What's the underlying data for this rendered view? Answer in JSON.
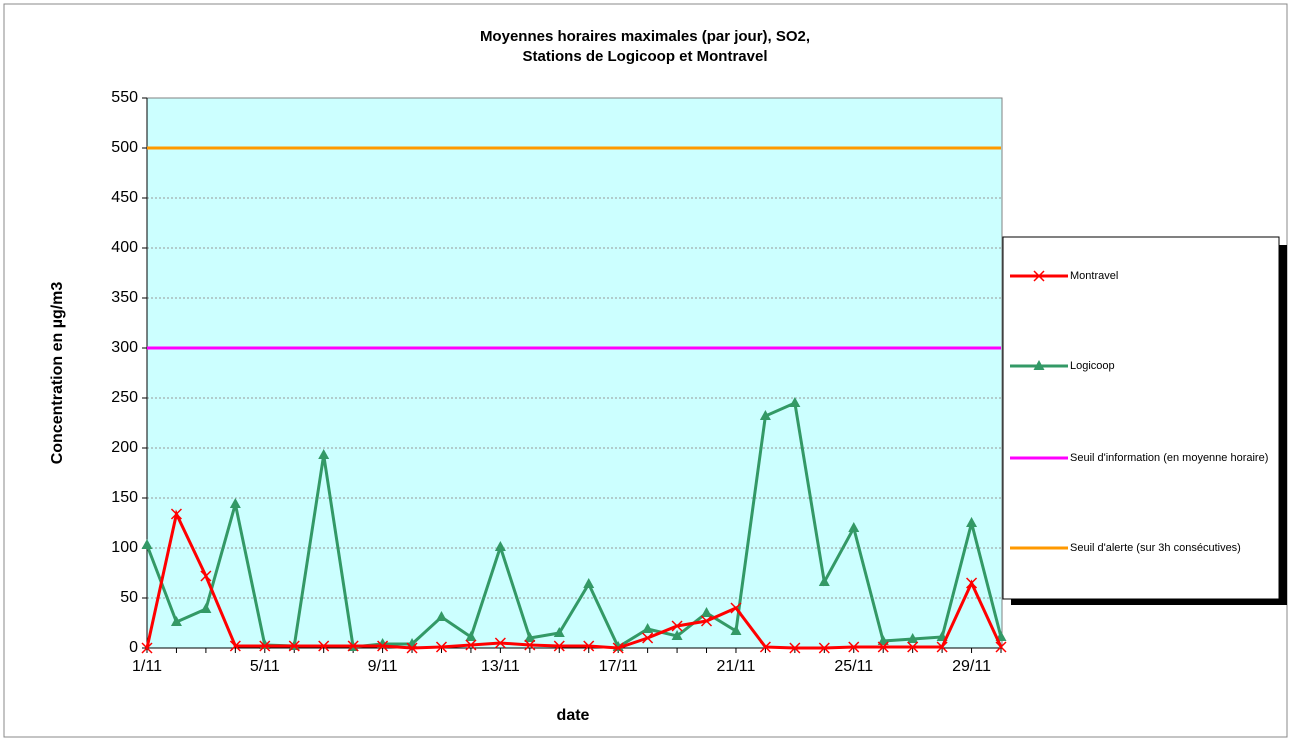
{
  "chart_data": {
    "type": "line",
    "title": [
      "Moyennes horaires maximales (par jour), SO2,",
      "Stations de Logicoop et Montravel"
    ],
    "x_label": "date",
    "y_label": "Concentration en µg/m3",
    "categories": [
      "1/11",
      null,
      null,
      null,
      "5/11",
      null,
      null,
      null,
      "9/11",
      null,
      null,
      null,
      "13/11",
      null,
      null,
      null,
      "17/11",
      null,
      null,
      null,
      "21/11",
      null,
      null,
      null,
      "25/11",
      null,
      null,
      null,
      "29/11",
      null
    ],
    "series": [
      {
        "name": "Montravel",
        "color": "#ff0000",
        "marker": "x",
        "values": [
          0,
          134,
          72,
          2,
          2,
          2,
          2,
          2,
          2,
          0,
          1,
          3,
          5,
          3,
          2,
          2,
          0,
          10,
          22,
          27,
          40,
          1,
          0,
          0,
          1,
          1,
          1,
          1,
          65,
          1
        ]
      },
      {
        "name": "Logicoop",
        "color": "#339966",
        "marker": "triangle",
        "values": [
          103,
          26,
          39,
          144,
          3,
          2,
          193,
          1,
          4,
          4,
          31,
          11,
          101,
          10,
          15,
          64,
          1,
          19,
          12,
          35,
          17,
          232,
          245,
          66,
          120,
          7,
          9,
          11,
          125,
          11
        ]
      },
      {
        "name": "Seuil d'information (en moyenne horaire)",
        "color": "#ff00ff",
        "marker": "none",
        "values": [
          300,
          300,
          300,
          300,
          300,
          300,
          300,
          300,
          300,
          300,
          300,
          300,
          300,
          300,
          300,
          300,
          300,
          300,
          300,
          300,
          300,
          300,
          300,
          300,
          300,
          300,
          300,
          300,
          300,
          300
        ]
      },
      {
        "name": "Seuil d'alerte (sur 3h consécutives)",
        "color": "#ff9900",
        "marker": "none",
        "values": [
          500,
          500,
          500,
          500,
          500,
          500,
          500,
          500,
          500,
          500,
          500,
          500,
          500,
          500,
          500,
          500,
          500,
          500,
          500,
          500,
          500,
          500,
          500,
          500,
          500,
          500,
          500,
          500,
          500,
          500
        ]
      }
    ],
    "ylim": [
      0,
      550
    ],
    "yticks": [
      0,
      50,
      100,
      150,
      200,
      250,
      300,
      350,
      400,
      450,
      500,
      550
    ],
    "grid": true,
    "legend": "right",
    "plot_background": "#ccffff"
  }
}
